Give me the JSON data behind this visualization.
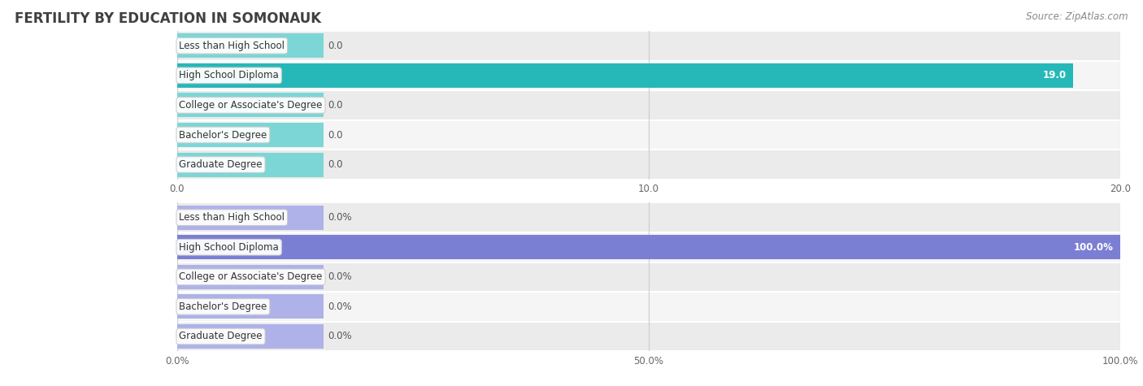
{
  "title": "FERTILITY BY EDUCATION IN SOMONAUK",
  "source": "Source: ZipAtlas.com",
  "categories": [
    "Less than High School",
    "High School Diploma",
    "College or Associate's Degree",
    "Bachelor's Degree",
    "Graduate Degree"
  ],
  "chart1": {
    "values": [
      0.0,
      19.0,
      0.0,
      0.0,
      0.0
    ],
    "bar_color_main": "#26b8b8",
    "bar_color_zero": "#7dd6d6",
    "xlim": [
      0,
      20.0
    ],
    "xticks": [
      0.0,
      10.0,
      20.0
    ],
    "xtick_labels": [
      "0.0",
      "10.0",
      "20.0"
    ],
    "value_labels": [
      "0.0",
      "19.0",
      "0.0",
      "0.0",
      "0.0"
    ]
  },
  "chart2": {
    "values": [
      0.0,
      100.0,
      0.0,
      0.0,
      0.0
    ],
    "bar_color_main": "#7b7fd4",
    "bar_color_zero": "#aeb2e8",
    "xlim": [
      0,
      100.0
    ],
    "xticks": [
      0.0,
      50.0,
      100.0
    ],
    "xtick_labels": [
      "0.0%",
      "50.0%",
      "100.0%"
    ],
    "value_labels": [
      "0.0%",
      "100.0%",
      "0.0%",
      "0.0%",
      "0.0%"
    ]
  },
  "label_color": "#555555",
  "label_fontsize": 8.5,
  "title_fontsize": 12,
  "source_fontsize": 8.5,
  "bar_height": 0.82,
  "row_bg_colors": [
    "#ebebeb",
    "#f5f5f5",
    "#ebebeb",
    "#f5f5f5",
    "#ebebeb"
  ]
}
